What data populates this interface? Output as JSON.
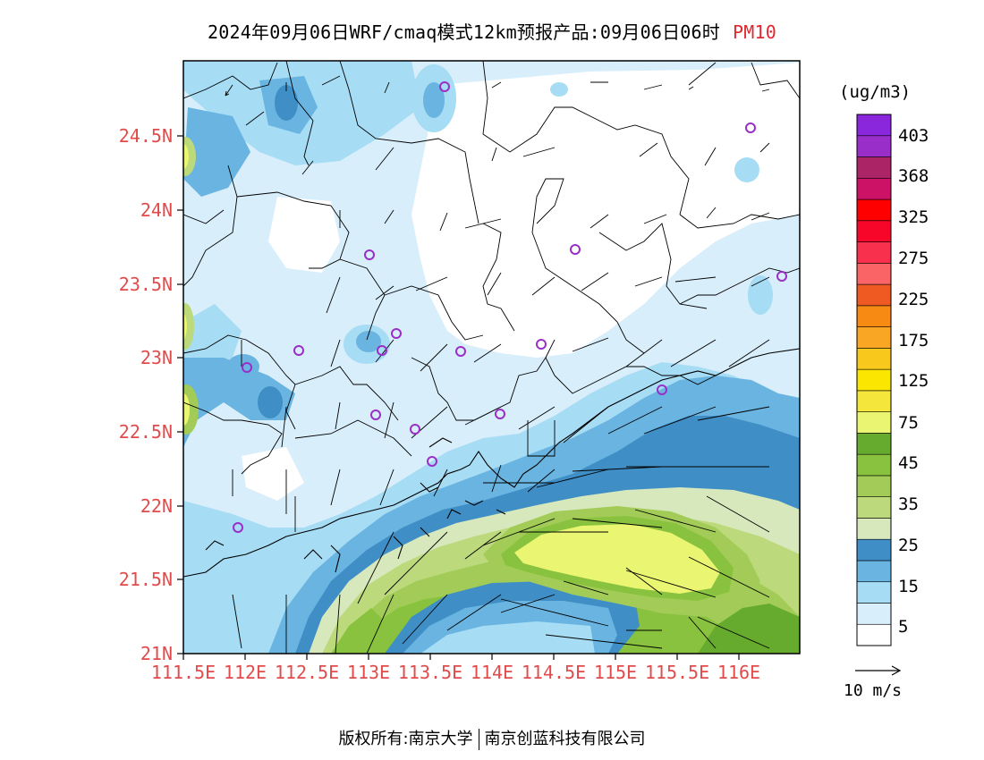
{
  "title": {
    "main": "2024年09月06日WRF/cmaq模式12km预报产品:09月06日06时",
    "variable": "PM10"
  },
  "colorbar": {
    "units": "(ug/m3)",
    "colors": [
      "#ffffff",
      "#d8eefa",
      "#a6dcf4",
      "#69b4e0",
      "#3f8ec6",
      "#d8e8bd",
      "#bcd97c",
      "#a2cc57",
      "#88c23e",
      "#66aa2e",
      "#eaf571",
      "#f5e63c",
      "#fae600",
      "#f8c91c",
      "#f8a624",
      "#f68a12",
      "#ee5a22",
      "#fa6466",
      "#f8304e",
      "#f8062a",
      "#fe0000",
      "#cc1266",
      "#aa2466",
      "#9a2ec8",
      "#8a26dc"
    ],
    "tick_labels": [
      "5",
      "15",
      "25",
      "35",
      "45",
      "75",
      "125",
      "175",
      "225",
      "275",
      "325",
      "368",
      "403"
    ]
  },
  "axes": {
    "x_ticks": [
      "111.5E",
      "112E",
      "112.5E",
      "113E",
      "113.5E",
      "114E",
      "114.5E",
      "115E",
      "115.5E",
      "116E"
    ],
    "y_ticks": [
      "24.5N",
      "24N",
      "23.5N",
      "23N",
      "22.5N",
      "22N",
      "21.5N",
      "21N"
    ]
  },
  "wind_reference": "10 m/s",
  "copyright": {
    "left": "版权所有:南京大学",
    "right": "南京创蓝科技有限公司"
  }
}
